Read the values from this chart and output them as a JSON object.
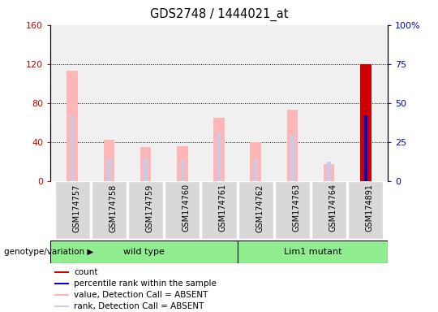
{
  "title": "GDS2748 / 1444021_at",
  "samples": [
    "GSM174757",
    "GSM174758",
    "GSM174759",
    "GSM174760",
    "GSM174761",
    "GSM174762",
    "GSM174763",
    "GSM174764",
    "GSM174891"
  ],
  "value_absent": [
    113,
    42,
    35,
    36,
    65,
    40,
    73,
    17,
    0
  ],
  "rank_absent": [
    67,
    23,
    22,
    22,
    50,
    23,
    47,
    20,
    0
  ],
  "count_present": [
    0,
    0,
    0,
    0,
    0,
    0,
    0,
    0,
    120
  ],
  "rank_present": [
    0,
    0,
    0,
    0,
    0,
    0,
    0,
    0,
    67
  ],
  "groups": [
    {
      "label": "wild type",
      "start": 0,
      "end": 5
    },
    {
      "label": "Lim1 mutant",
      "start": 5,
      "end": 9
    }
  ],
  "ylim_left": [
    0,
    160
  ],
  "ylim_right": [
    0,
    100
  ],
  "yticks_left": [
    0,
    40,
    80,
    120,
    160
  ],
  "yticks_right": [
    0,
    25,
    50,
    75,
    100
  ],
  "yticklabels_right": [
    "0",
    "25",
    "50",
    "75",
    "100%"
  ],
  "color_value_absent": "#ffb6b6",
  "color_rank_absent": "#c8cce8",
  "color_count": "#cc0000",
  "color_rank_present": "#0000cc",
  "color_left_tick": "#cc0000",
  "color_right_tick": "#0000cc",
  "plot_bg_color": "#f0f0f0",
  "col_bg_color": "#d8d8d8",
  "green_color": "#90ee90",
  "genotype_label": "genotype/variation",
  "legend_items": [
    {
      "color": "#cc0000",
      "label": "count"
    },
    {
      "color": "#0000cc",
      "label": "percentile rank within the sample"
    },
    {
      "color": "#ffb6b6",
      "label": "value, Detection Call = ABSENT"
    },
    {
      "color": "#c8cce8",
      "label": "rank, Detection Call = ABSENT"
    }
  ]
}
